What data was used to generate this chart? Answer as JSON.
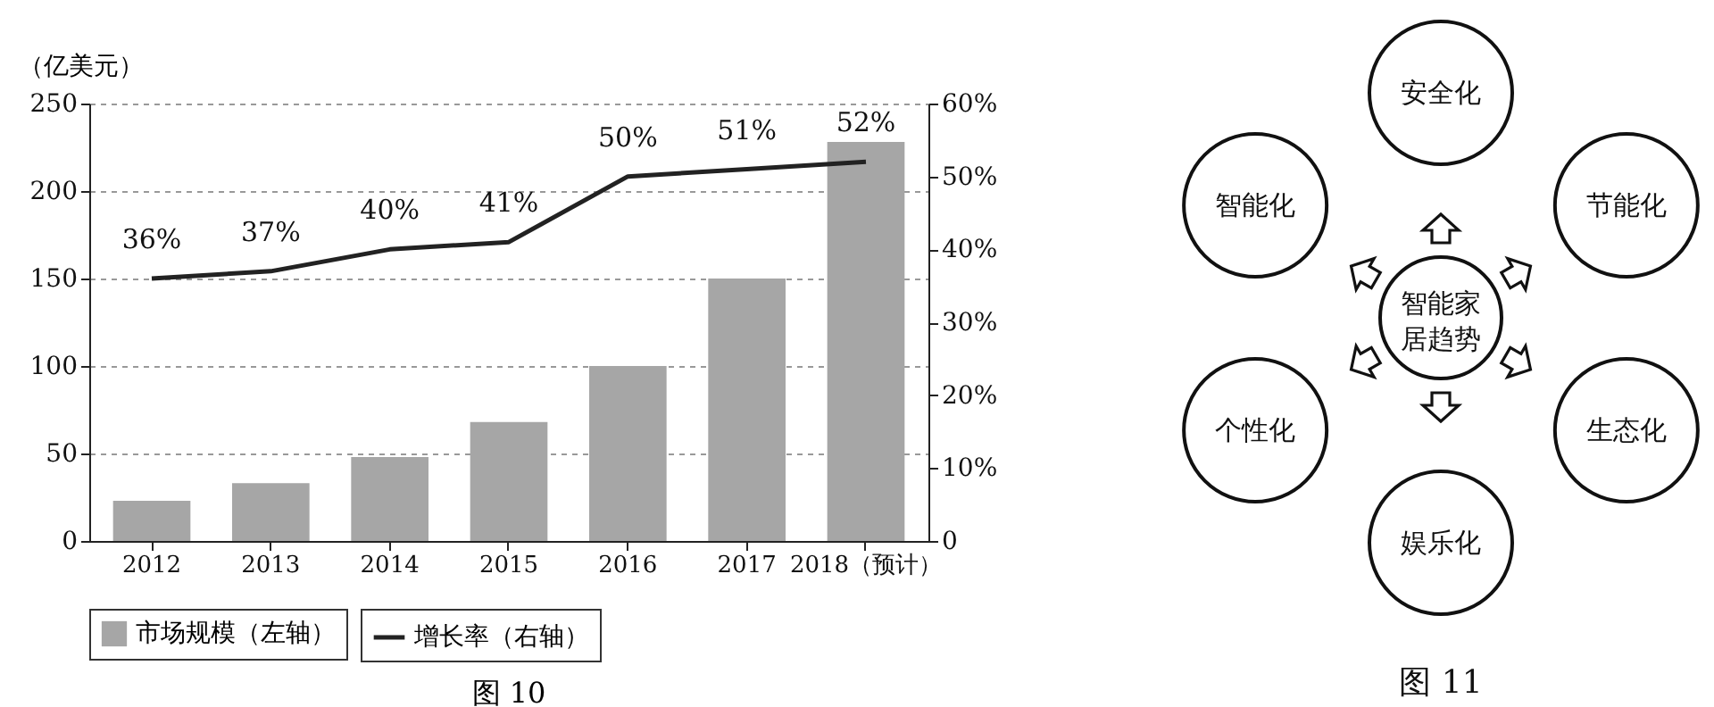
{
  "chart_data": [
    {
      "type": "bar",
      "title": "图 10",
      "ylabel": "（亿美元）",
      "categories": [
        "2012",
        "2013",
        "2014",
        "2015",
        "2016",
        "2017",
        "2018（预计）"
      ],
      "series": [
        {
          "name": "市场规模（左轴）",
          "color": "#a6a6a6",
          "values": [
            23,
            33,
            48,
            68,
            100,
            150,
            228
          ]
        },
        {
          "name": "增长率（右轴）",
          "type": "line",
          "axis": "y2",
          "color": "#222222",
          "values": [
            36,
            37,
            40,
            41,
            50,
            51,
            52
          ],
          "value_labels": [
            "36%",
            "37%",
            "40%",
            "41%",
            "50%",
            "51%",
            "52%"
          ]
        }
      ],
      "ylim": [
        0,
        250
      ],
      "yticks": [
        0,
        50,
        100,
        150,
        200,
        250
      ],
      "y2lim": [
        0,
        60
      ],
      "y2ticks": [
        0,
        {
          "value": 10,
          "label": "10%"
        },
        {
          "value": 20,
          "label": "20%"
        },
        {
          "value": 30,
          "label": "30%"
        },
        {
          "value": 40,
          "label": "40%"
        },
        {
          "value": 50,
          "label": "50%"
        },
        {
          "value": 60,
          "label": "60%"
        }
      ],
      "grid": "y",
      "legend": "bottom",
      "marker": "none",
      "line_style": "solid"
    },
    {
      "type": "other",
      "title": "图 11",
      "annotations": [
        "智能家居趋势",
        "安全化",
        "节能化",
        "生态化",
        "娱乐化",
        "个性化",
        "智能化"
      ]
    }
  ]
}
